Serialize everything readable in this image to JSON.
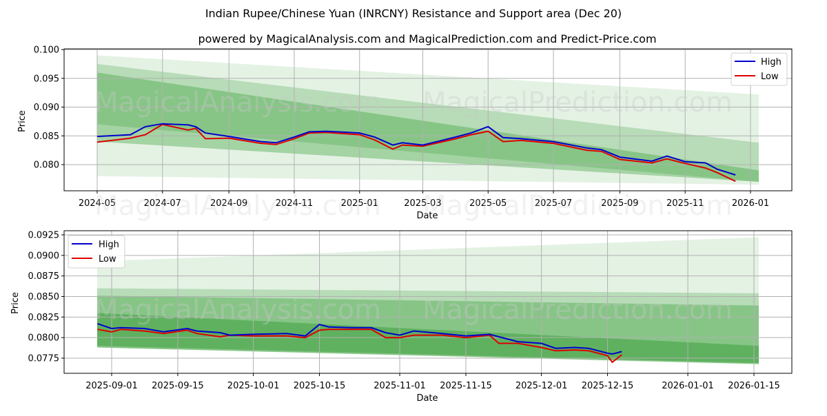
{
  "title": "Indian Rupee/Chinese Yuan (INRCNY) Resistance and Support area (Dec 20)",
  "subtitle": "powered by MagicalAnalysis.com and MagicalPrediction.com and Predict-Price.com",
  "watermarks": [
    "MagicalAnalysis.com",
    "MagicalPrediction.com"
  ],
  "colors": {
    "high": "#0000cc",
    "low": "#dd0000",
    "band": "#2e9a2e"
  },
  "chart_data": [
    {
      "type": "line",
      "title": "",
      "xlabel": "Date",
      "ylabel": "Price",
      "ylim": [
        0.0755,
        0.1003
      ],
      "yticks": [
        "0.080",
        "0.085",
        "0.090",
        "0.095",
        "0.100"
      ],
      "xticks": [
        "2024-05",
        "2024-07",
        "2024-09",
        "2024-11",
        "2025-01",
        "2025-03",
        "2025-05",
        "2025-07",
        "2025-09",
        "2025-11",
        "2026-01"
      ],
      "grid": true,
      "legend": {
        "position": "upper right",
        "entries": [
          "High",
          "Low"
        ]
      },
      "x": [
        "2024-05",
        "2024-06",
        "2024-06-15",
        "2024-07",
        "2024-07-25",
        "2024-08",
        "2024-08-10",
        "2024-09",
        "2024-10",
        "2024-10-15",
        "2024-11",
        "2024-11-15",
        "2024-12",
        "2025-01",
        "2025-01-15",
        "2025-02",
        "2025-02-10",
        "2025-03",
        "2025-04",
        "2025-04-15",
        "2025-05",
        "2025-05-15",
        "2025-06",
        "2025-07",
        "2025-08",
        "2025-08-15",
        "2025-09",
        "2025-10",
        "2025-10-15",
        "2025-11",
        "2025-11-20",
        "2025-12",
        "2025-12-18"
      ],
      "series": [
        {
          "name": "High",
          "values": [
            0.0849,
            0.0852,
            0.0866,
            0.0871,
            0.0869,
            0.0866,
            0.0855,
            0.0849,
            0.084,
            0.0838,
            0.0848,
            0.0857,
            0.0858,
            0.0855,
            0.0848,
            0.0834,
            0.0838,
            0.0834,
            0.0848,
            0.0855,
            0.0866,
            0.0847,
            0.0845,
            0.084,
            0.0829,
            0.0826,
            0.0813,
            0.0806,
            0.0815,
            0.0805,
            0.0803,
            0.0792,
            0.0782
          ]
        },
        {
          "name": "Low",
          "values": [
            0.0839,
            0.0846,
            0.0852,
            0.087,
            0.086,
            0.0863,
            0.0845,
            0.0846,
            0.0837,
            0.0835,
            0.0845,
            0.0855,
            0.0856,
            0.0852,
            0.0843,
            0.0827,
            0.0834,
            0.0832,
            0.0845,
            0.0852,
            0.0858,
            0.084,
            0.0842,
            0.0837,
            0.0825,
            0.0823,
            0.0809,
            0.0803,
            0.081,
            0.0802,
            0.0794,
            0.0786,
            0.0771
          ]
        }
      ],
      "bands": [
        {
          "name": "outer-light",
          "start": [
            0.078,
            0.099
          ],
          "end": [
            0.0765,
            0.0922
          ]
        },
        {
          "name": "upper-mid",
          "start": [
            0.087,
            0.0975
          ],
          "end": [
            0.077,
            0.0838
          ]
        },
        {
          "name": "core",
          "start": [
            0.084,
            0.096
          ],
          "end": [
            0.077,
            0.079
          ]
        }
      ]
    },
    {
      "type": "line",
      "title": "",
      "xlabel": "Date",
      "ylabel": "Price",
      "ylim": [
        0.0756,
        0.093
      ],
      "yticks": [
        "0.0775",
        "0.0800",
        "0.0825",
        "0.0850",
        "0.0875",
        "0.0900",
        "0.0925"
      ],
      "xticks": [
        "2025-09-01",
        "2025-09-15",
        "2025-10-01",
        "2025-10-15",
        "2025-11-01",
        "2025-11-15",
        "2025-12-01",
        "2025-12-15",
        "2026-01-01",
        "2026-01-15"
      ],
      "grid": true,
      "legend": {
        "position": "upper left",
        "entries": [
          "High",
          "Low"
        ]
      },
      "x": [
        "2025-08-29",
        "2025-09-01",
        "2025-09-03",
        "2025-09-08",
        "2025-09-12",
        "2025-09-17",
        "2025-09-19",
        "2025-09-24",
        "2025-09-26",
        "2025-10-01",
        "2025-10-08",
        "2025-10-12",
        "2025-10-15",
        "2025-10-17",
        "2025-10-22",
        "2025-10-26",
        "2025-10-29",
        "2025-11-01",
        "2025-11-04",
        "2025-11-10",
        "2025-11-15",
        "2025-11-20",
        "2025-11-22",
        "2025-11-26",
        "2025-12-01",
        "2025-12-04",
        "2025-12-08",
        "2025-12-11",
        "2025-12-15",
        "2025-12-16",
        "2025-12-18"
      ],
      "series": [
        {
          "name": "High",
          "values": [
            0.0817,
            0.0811,
            0.0812,
            0.0811,
            0.0807,
            0.0811,
            0.0808,
            0.0806,
            0.0803,
            0.0804,
            0.0805,
            0.0802,
            0.0816,
            0.0813,
            0.0812,
            0.0812,
            0.0806,
            0.0803,
            0.0808,
            0.0805,
            0.0802,
            0.0804,
            0.0801,
            0.0795,
            0.0793,
            0.0787,
            0.0788,
            0.0787,
            0.0781,
            0.078,
            0.0783
          ]
        },
        {
          "name": "Low",
          "values": [
            0.081,
            0.0807,
            0.081,
            0.0808,
            0.0805,
            0.0809,
            0.0805,
            0.0801,
            0.0803,
            0.0802,
            0.0802,
            0.08,
            0.0809,
            0.081,
            0.081,
            0.081,
            0.08,
            0.08,
            0.0803,
            0.0803,
            0.08,
            0.0803,
            0.0793,
            0.0793,
            0.0788,
            0.0784,
            0.0785,
            0.0784,
            0.0778,
            0.077,
            0.0779
          ]
        }
      ],
      "bands": [
        {
          "name": "outer-light",
          "start": [
            0.0788,
            0.0893
          ],
          "end": [
            0.0767,
            0.0922
          ]
        },
        {
          "name": "mid-light",
          "start": [
            0.0788,
            0.086
          ],
          "end": [
            0.0768,
            0.0854
          ]
        },
        {
          "name": "mid",
          "start": [
            0.0788,
            0.0851
          ],
          "end": [
            0.0768,
            0.0839
          ]
        },
        {
          "name": "core",
          "start": [
            0.079,
            0.083
          ],
          "end": [
            0.0769,
            0.079
          ]
        }
      ]
    }
  ]
}
